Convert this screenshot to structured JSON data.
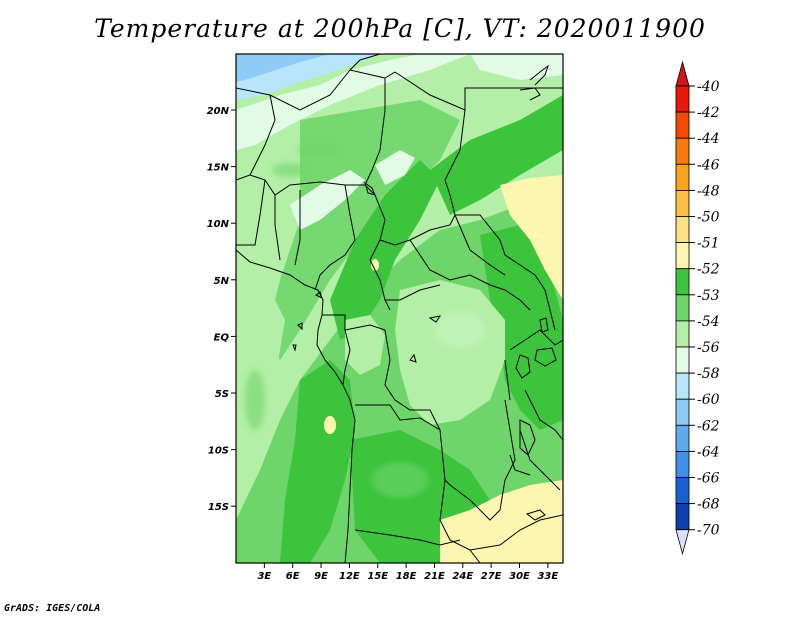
{
  "title": "Temperature at 200hPa [C], VT: 2020011900",
  "credit": "GrADS: IGES/COLA",
  "map": {
    "lat_range": [
      -20,
      25
    ],
    "lon_range": [
      0,
      36
    ],
    "lat_labels": [
      {
        "lat": 20,
        "text": "20N"
      },
      {
        "lat": 15,
        "text": "15N"
      },
      {
        "lat": 10,
        "text": "10N"
      },
      {
        "lat": 5,
        "text": "5N"
      },
      {
        "lat": 0,
        "text": "EQ"
      },
      {
        "lat": -5,
        "text": "5S"
      },
      {
        "lat": -10,
        "text": "10S"
      },
      {
        "lat": -15,
        "text": "15S"
      }
    ],
    "lon_labels": [
      {
        "lon": 3,
        "text": "3E"
      },
      {
        "lon": 6,
        "text": "6E"
      },
      {
        "lon": 9,
        "text": "9E"
      },
      {
        "lon": 12,
        "text": "12E"
      },
      {
        "lon": 15,
        "text": "15E"
      },
      {
        "lon": 18,
        "text": "18E"
      },
      {
        "lon": 21,
        "text": "21E"
      },
      {
        "lon": 24,
        "text": "24E"
      },
      {
        "lon": 27,
        "text": "27E"
      },
      {
        "lon": 30,
        "text": "30E"
      },
      {
        "lon": 33,
        "text": "33E"
      }
    ]
  },
  "colorbar": [
    {
      "label": "-40",
      "color": "#e8180a"
    },
    {
      "label": "-42",
      "color": "#f54a05"
    },
    {
      "label": "-44",
      "color": "#fa7a0a"
    },
    {
      "label": "-46",
      "color": "#fba21f"
    },
    {
      "label": "-48",
      "color": "#fdbf42"
    },
    {
      "label": "-50",
      "color": "#fde285"
    },
    {
      "label": "-51",
      "color": "#fdf6b0"
    },
    {
      "label": "-52",
      "color": "#3cc43c"
    },
    {
      "label": "-53",
      "color": "#6ed56a"
    },
    {
      "label": "-54",
      "color": "#b3efa6"
    },
    {
      "label": "-56",
      "color": "#e1fbe6"
    },
    {
      "label": "-58",
      "color": "#b7e6fb"
    },
    {
      "label": "-60",
      "color": "#8fcbf6"
    },
    {
      "label": "-62",
      "color": "#5fa9ee"
    },
    {
      "label": "-64",
      "color": "#3f8ee9"
    },
    {
      "label": "-66",
      "color": "#1a5fd6"
    },
    {
      "label": "-68",
      "color": "#0e3fae"
    },
    {
      "label": "-70",
      "color": "#0a177a"
    }
  ],
  "colorbar_end_colors": {
    "top": "#d31414",
    "bottom": "#dde0f7"
  }
}
